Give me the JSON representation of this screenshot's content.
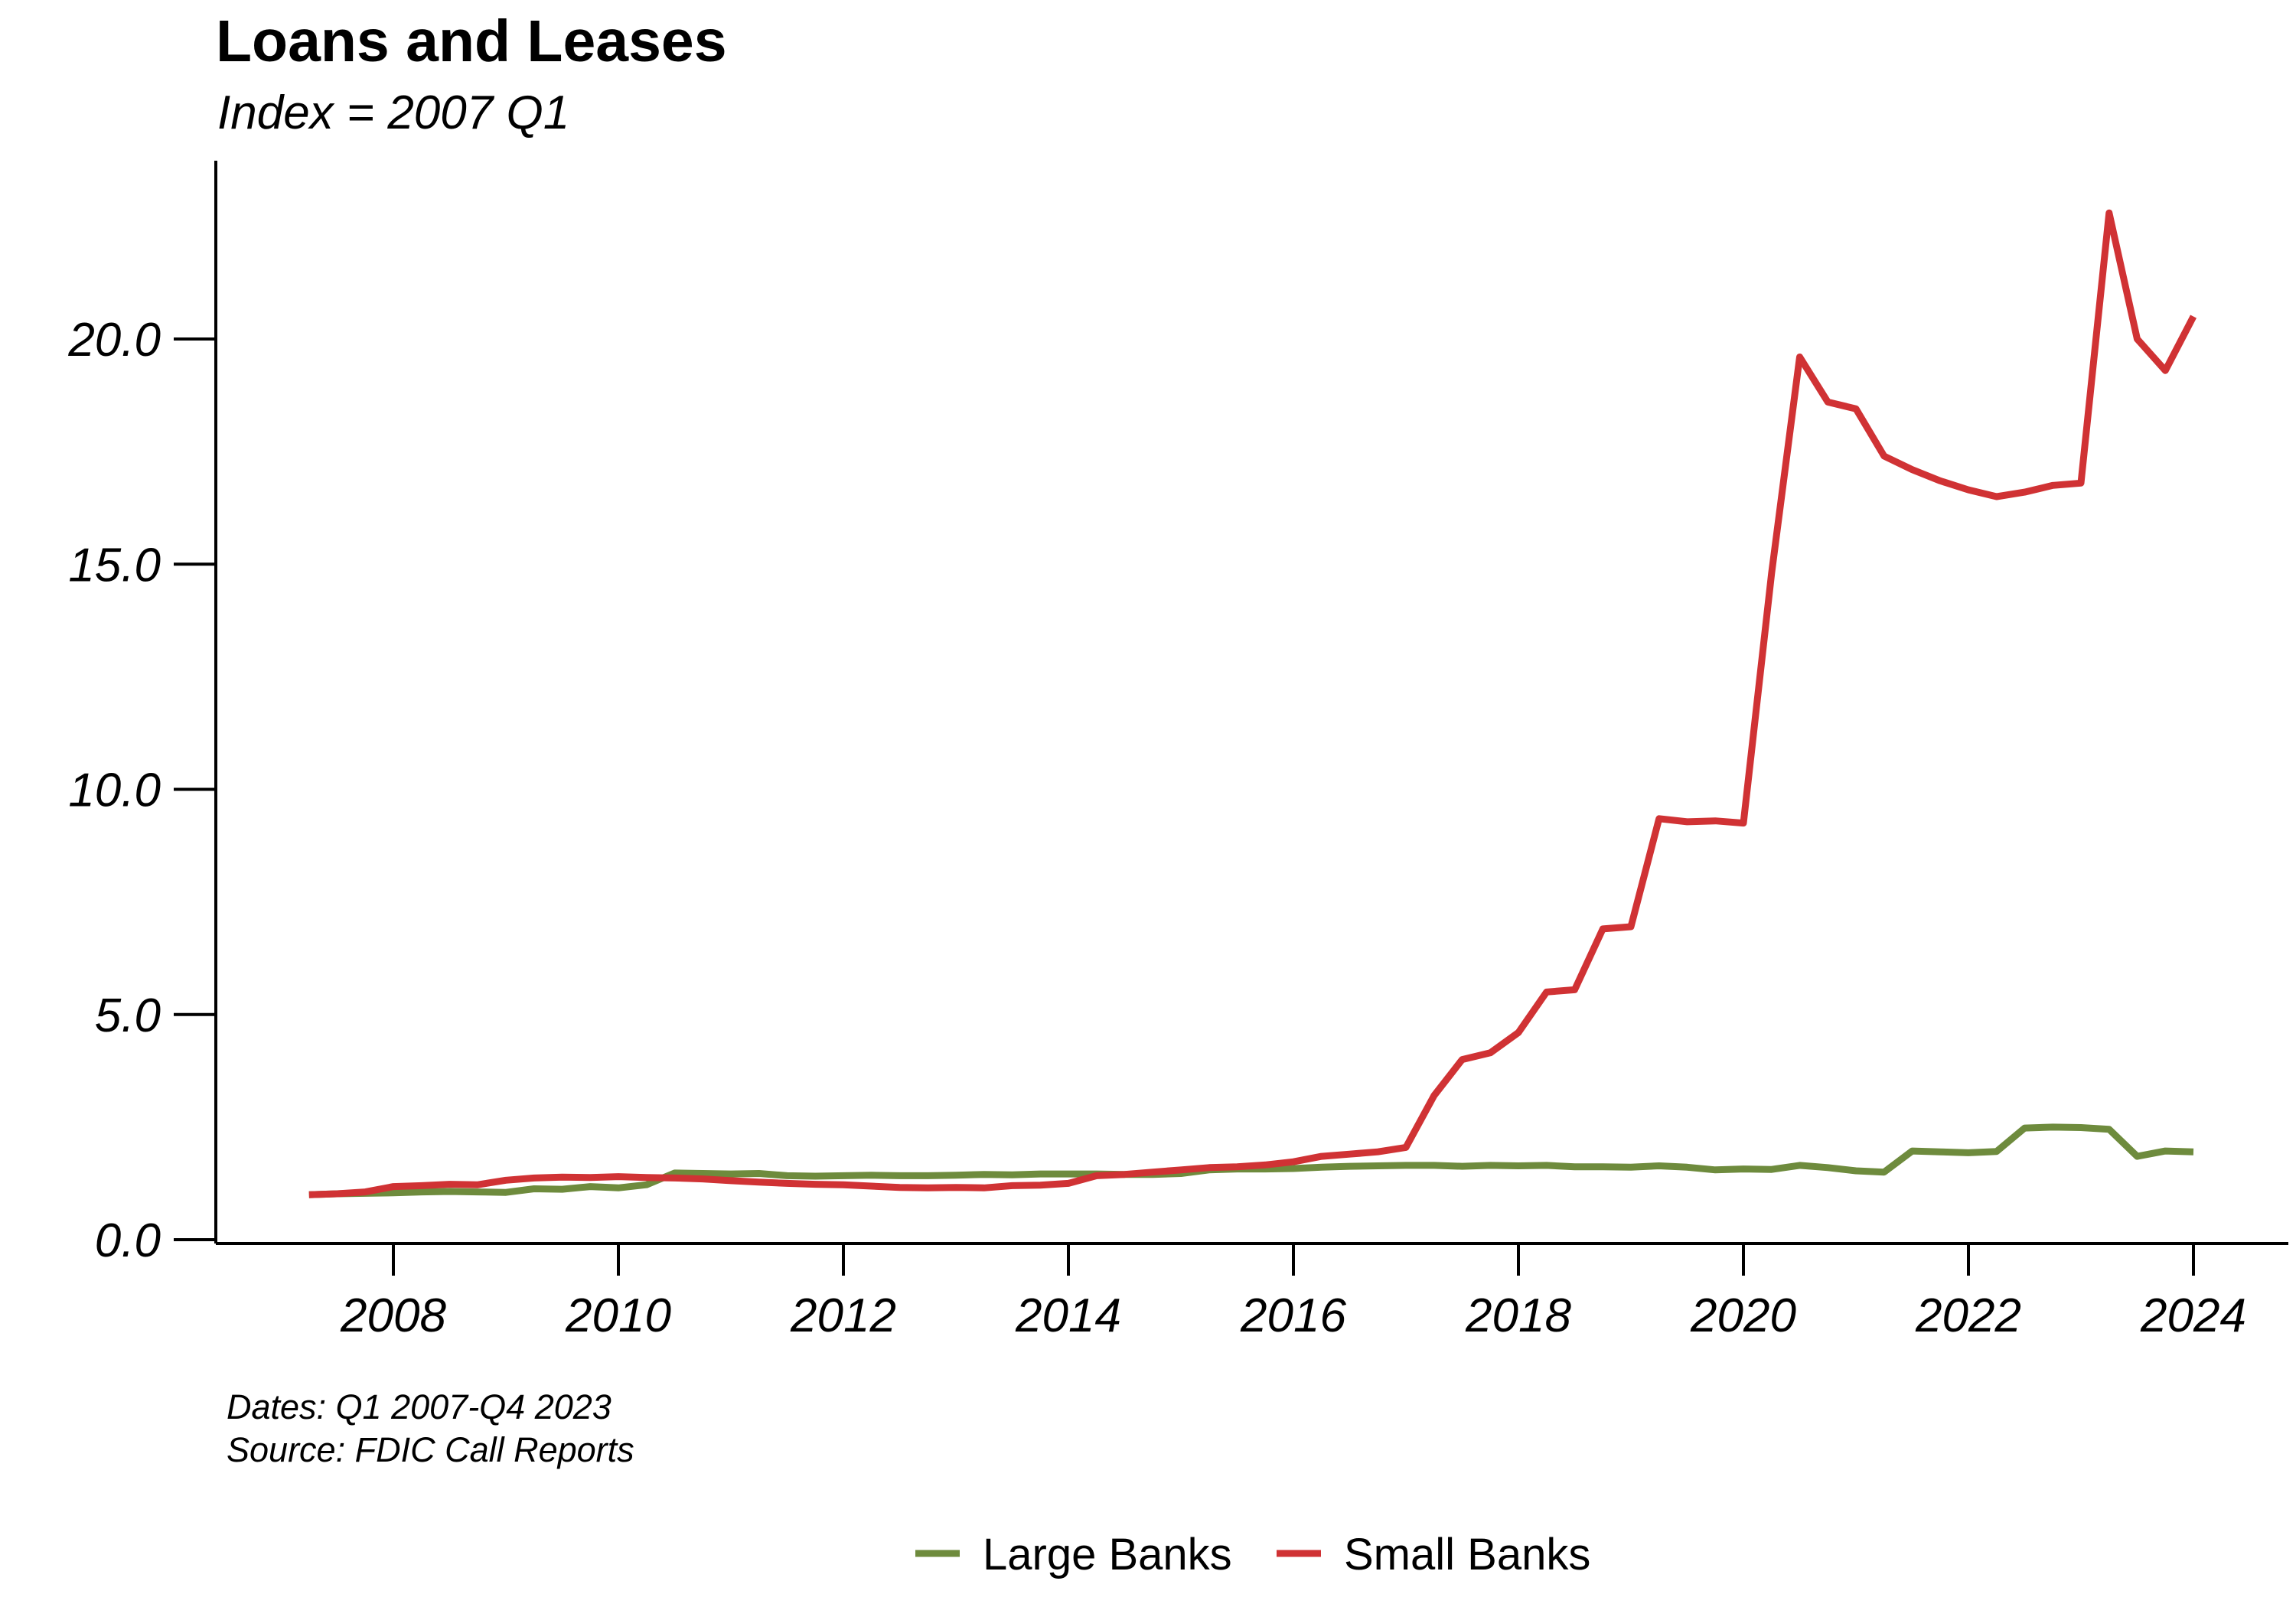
{
  "chart_data": {
    "type": "line",
    "title": "Loans and Leases",
    "subtitle": "Index = 2007 Q1",
    "xlabel": "",
    "ylabel": "",
    "x_ticks": [
      "2008",
      "2010",
      "2012",
      "2014",
      "2016",
      "2018",
      "2020",
      "2022",
      "2024"
    ],
    "y_ticks": [
      "0.0",
      "5.0",
      "10.0",
      "15.0",
      "20.0"
    ],
    "ylim": [
      0,
      23
    ],
    "xlim": [
      2006.5,
      2024.8
    ],
    "grid": false,
    "legend_position": "bottom",
    "caption": [
      "Dates: Q1 2007-Q4 2023",
      "Source: FDIC Call Reports"
    ],
    "x": [
      "2007 Q1",
      "2007 Q2",
      "2007 Q3",
      "2007 Q4",
      "2008 Q1",
      "2008 Q2",
      "2008 Q3",
      "2008 Q4",
      "2009 Q1",
      "2009 Q2",
      "2009 Q3",
      "2009 Q4",
      "2010 Q1",
      "2010 Q2",
      "2010 Q3",
      "2010 Q4",
      "2011 Q1",
      "2011 Q2",
      "2011 Q3",
      "2011 Q4",
      "2012 Q1",
      "2012 Q2",
      "2012 Q3",
      "2012 Q4",
      "2013 Q1",
      "2013 Q2",
      "2013 Q3",
      "2013 Q4",
      "2014 Q1",
      "2014 Q2",
      "2014 Q3",
      "2014 Q4",
      "2015 Q1",
      "2015 Q2",
      "2015 Q3",
      "2015 Q4",
      "2016 Q1",
      "2016 Q2",
      "2016 Q3",
      "2016 Q4",
      "2017 Q1",
      "2017 Q2",
      "2017 Q3",
      "2017 Q4",
      "2018 Q1",
      "2018 Q2",
      "2018 Q3",
      "2018 Q4",
      "2019 Q1",
      "2019 Q2",
      "2019 Q3",
      "2019 Q4",
      "2020 Q1",
      "2020 Q2",
      "2020 Q3",
      "2020 Q4",
      "2021 Q1",
      "2021 Q2",
      "2021 Q3",
      "2021 Q4",
      "2022 Q1",
      "2022 Q2",
      "2022 Q3",
      "2022 Q4",
      "2023 Q1",
      "2023 Q2",
      "2023 Q3",
      "2023 Q4"
    ],
    "series": [
      {
        "name": "Large Banks",
        "color": "#6e8b3d",
        "values": [
          1.0,
          1.02,
          1.03,
          1.04,
          1.06,
          1.07,
          1.06,
          1.05,
          1.13,
          1.12,
          1.18,
          1.15,
          1.22,
          1.48,
          1.47,
          1.46,
          1.47,
          1.42,
          1.41,
          1.42,
          1.43,
          1.42,
          1.42,
          1.43,
          1.45,
          1.44,
          1.46,
          1.46,
          1.46,
          1.45,
          1.45,
          1.47,
          1.55,
          1.57,
          1.57,
          1.58,
          1.61,
          1.63,
          1.64,
          1.65,
          1.65,
          1.63,
          1.65,
          1.64,
          1.65,
          1.62,
          1.62,
          1.61,
          1.64,
          1.61,
          1.55,
          1.57,
          1.56,
          1.65,
          1.6,
          1.53,
          1.5,
          1.97,
          1.95,
          1.93,
          1.96,
          2.48,
          2.5,
          2.49,
          2.45,
          1.85,
          1.97,
          1.95
        ]
      },
      {
        "name": "Small Banks",
        "color": "#d03234",
        "values": [
          1.0,
          1.02,
          1.06,
          1.18,
          1.2,
          1.23,
          1.22,
          1.32,
          1.37,
          1.39,
          1.38,
          1.4,
          1.38,
          1.37,
          1.35,
          1.31,
          1.28,
          1.25,
          1.23,
          1.22,
          1.19,
          1.16,
          1.15,
          1.16,
          1.15,
          1.2,
          1.21,
          1.25,
          1.42,
          1.45,
          1.5,
          1.55,
          1.6,
          1.62,
          1.66,
          1.73,
          1.85,
          1.9,
          1.95,
          2.05,
          3.2,
          4.0,
          4.15,
          4.6,
          5.5,
          5.55,
          6.9,
          6.95,
          9.35,
          9.28,
          9.3,
          9.25,
          14.8,
          19.6,
          18.6,
          18.45,
          17.4,
          17.1,
          16.85,
          16.65,
          16.5,
          16.6,
          16.75,
          16.8,
          22.8,
          20.0,
          19.3,
          20.5
        ]
      }
    ]
  }
}
